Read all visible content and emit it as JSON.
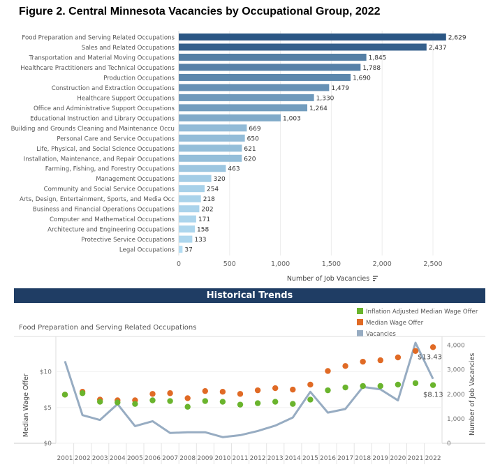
{
  "title": "Figure 2. Central Minnesota Vacancies by Occupational Group, 2022",
  "chart_data": [
    {
      "type": "bar",
      "orientation": "horizontal",
      "categories": [
        "Food Preparation and Serving Related Occupations",
        "Sales and Related Occupations",
        "Transportation and Material Moving Occupations",
        "Healthcare Practitioners and Technical Occupations",
        "Production Occupations",
        "Construction and Extraction Occupations",
        "Healthcare Support Occupations",
        "Office and Administrative Support Occupations",
        "Educational Instruction and Library Occupations",
        "Building and Grounds Cleaning and Maintenance Occu",
        "Personal Care and Service Occupations",
        "Life, Physical, and Social Science Occupations",
        "Installation, Maintenance, and Repair Occupations",
        "Farming, Fishing, and Forestry Occupations",
        "Management Occupations",
        "Community and Social Service Occupations",
        "Arts, Design, Entertainment, Sports, and Media Occ",
        "Business and Financial Operations Occupations",
        "Computer and Mathematical Occupations",
        "Architecture and Engineering Occupations",
        "Protective Service Occupations",
        "Legal Occupations"
      ],
      "values": [
        2629,
        2437,
        1845,
        1788,
        1690,
        1479,
        1330,
        1264,
        1003,
        669,
        650,
        621,
        620,
        463,
        320,
        254,
        218,
        202,
        171,
        158,
        133,
        37
      ],
      "data_labels": [
        "2,629",
        "2,437",
        "1,845",
        "1,788",
        "1,690",
        "1,479",
        "1,330",
        "1,264",
        "1,003",
        "669",
        "650",
        "621",
        "620",
        "463",
        "320",
        "254",
        "218",
        "202",
        "171",
        "158",
        "133",
        "37"
      ],
      "xlabel": "Number of Job Vacancies",
      "xlim": [
        0,
        2900
      ],
      "xticks": [
        "0",
        "500",
        "1,000",
        "1,500",
        "2,000",
        "2,500"
      ],
      "xtick_values": [
        0,
        500,
        1000,
        1500,
        2000,
        2500
      ],
      "color_scale": [
        "#b3dcf2",
        "#2b5684"
      ],
      "grid": true
    },
    {
      "type": "line+scatter",
      "banner": "Historical Trends",
      "subtitle": "Food Preparation and Serving Related Occupations",
      "x": [
        2001,
        2002,
        2003,
        2004,
        2005,
        2006,
        2007,
        2008,
        2009,
        2010,
        2011,
        2012,
        2013,
        2014,
        2015,
        2016,
        2017,
        2018,
        2019,
        2020,
        2021,
        2022
      ],
      "series": [
        {
          "name": "Inflation Adjusted Median Wage Offer",
          "color": "#6ab42d",
          "axis": "left",
          "type": "scatter",
          "values": [
            6.8,
            7.0,
            5.8,
            5.7,
            5.5,
            6.0,
            5.9,
            5.1,
            5.9,
            5.8,
            5.4,
            5.6,
            5.8,
            5.5,
            6.1,
            7.4,
            7.8,
            8.0,
            8.0,
            8.2,
            8.4,
            8.13
          ]
        },
        {
          "name": "Median Wage Offer",
          "color": "#e06a25",
          "axis": "left",
          "type": "scatter",
          "values": [
            6.8,
            7.2,
            6.1,
            6.0,
            6.0,
            6.9,
            7.0,
            6.3,
            7.3,
            7.2,
            6.9,
            7.4,
            7.7,
            7.5,
            8.2,
            10.1,
            10.8,
            11.4,
            11.6,
            12.0,
            12.9,
            13.43
          ]
        },
        {
          "name": "Vacancies",
          "color": "#97acc2",
          "axis": "right",
          "type": "line",
          "values": [
            3350,
            1150,
            950,
            1600,
            700,
            900,
            420,
            450,
            450,
            250,
            330,
            500,
            720,
            1050,
            2100,
            1250,
            1400,
            2300,
            2200,
            1750,
            4100,
            2629
          ]
        }
      ],
      "annotations": [
        "$13.43",
        "$8.13"
      ],
      "ylabel_left": "Median Wage Offer",
      "ylabel_right": "Number of Job Vacancies",
      "ylim_left": [
        0,
        13.6
      ],
      "ylim_right": [
        0,
        4300
      ],
      "yticks_left": [
        "$0",
        "$5",
        "$10"
      ],
      "yticks_right": [
        "0",
        "1,000",
        "2,000",
        "3,000",
        "4,000"
      ],
      "xticks": [
        "2001",
        "2002",
        "2003",
        "2004",
        "2005",
        "2006",
        "2007",
        "2008",
        "2009",
        "2010",
        "2011",
        "2012",
        "2013",
        "2014",
        "2015",
        "2016",
        "2017",
        "2018",
        "2019",
        "2020",
        "2021",
        "2022"
      ],
      "legend": "top-right"
    }
  ]
}
